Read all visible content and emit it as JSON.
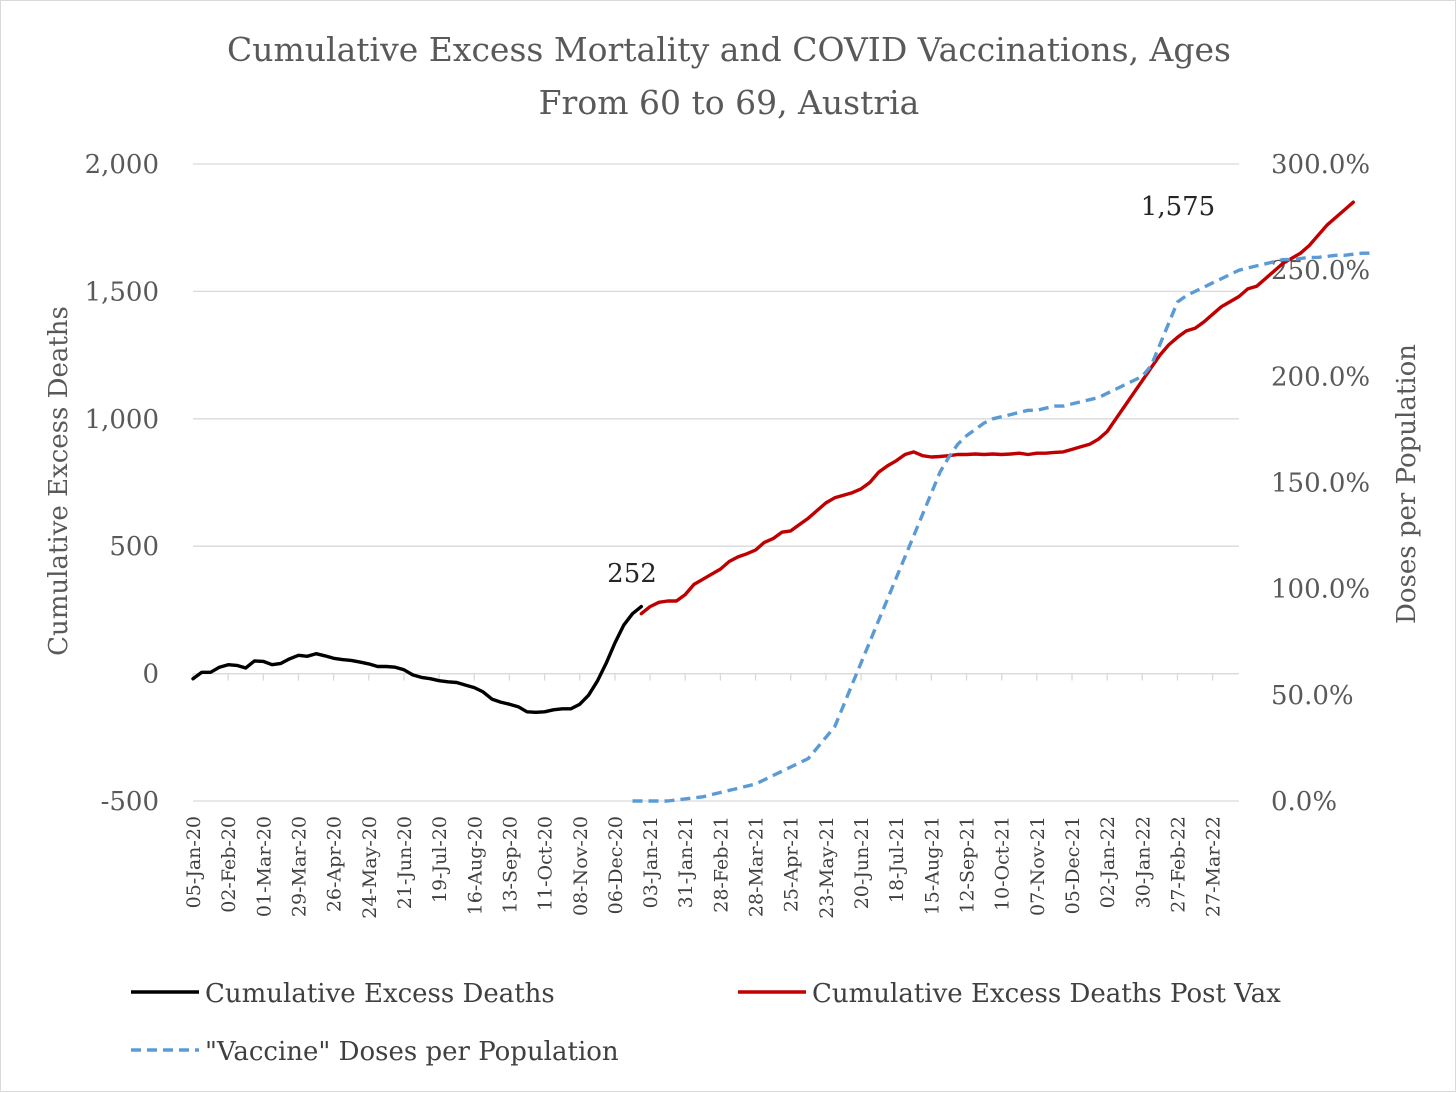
{
  "chart_data": {
    "type": "line",
    "title_line1": "Cumulative Excess Mortality and COVID Vaccinations, Ages",
    "title_line2": "From 60 to 69, Austria",
    "ylabel_left": "Cumulative Excess Deaths",
    "ylabel_right": "Doses per Population",
    "ylim_left": [
      -500,
      2000
    ],
    "ylim_right": [
      0,
      300
    ],
    "left_ticks": [
      "-500",
      "0",
      "500",
      "1,000",
      "1,500",
      "2,000"
    ],
    "right_ticks": [
      "0.0%",
      "50.0%",
      "100.0%",
      "150.0%",
      "200.0%",
      "250.0%",
      "300.0%"
    ],
    "x_ticks": [
      "05-Jan-20",
      "02-Feb-20",
      "01-Mar-20",
      "29-Mar-20",
      "26-Apr-20",
      "24-May-20",
      "21-Jun-20",
      "19-Jul-20",
      "16-Aug-20",
      "13-Sep-20",
      "11-Oct-20",
      "08-Nov-20",
      "06-Dec-20",
      "03-Jan-21",
      "31-Jan-21",
      "28-Feb-21",
      "28-Mar-21",
      "25-Apr-21",
      "23-May-21",
      "20-Jun-21",
      "18-Jul-21",
      "15-Aug-21",
      "12-Sep-21",
      "10-Oct-21",
      "07-Nov-21",
      "05-Dec-21",
      "02-Jan-22",
      "30-Jan-22",
      "27-Feb-22",
      "27-Mar-22"
    ],
    "grid": true,
    "legend_position": "bottom",
    "annotations": [
      {
        "text": "252",
        "x": "06-Dec-20",
        "y": 252
      },
      {
        "text": "1,575",
        "x": "27-Mar-22",
        "y": 1575
      }
    ],
    "series": [
      {
        "name": "Cumulative Excess Deaths",
        "axis": "left",
        "color": "#000000",
        "dash": "solid",
        "week_index_start": 0,
        "values": [
          -20,
          5,
          5,
          25,
          35,
          32,
          22,
          50,
          48,
          35,
          40,
          58,
          72,
          68,
          78,
          70,
          60,
          55,
          52,
          45,
          38,
          28,
          28,
          25,
          15,
          -5,
          -15,
          -20,
          -28,
          -32,
          -35,
          -45,
          -55,
          -72,
          -100,
          -112,
          -120,
          -130,
          -150,
          -152,
          -150,
          -142,
          -138,
          -138,
          -120,
          -85,
          -30,
          40,
          120,
          190,
          235,
          263
        ]
      },
      {
        "name": "Cumulative Excess Deaths Post Vax",
        "axis": "left",
        "color": "#c00000",
        "dash": "solid",
        "week_index_start": 51,
        "values": [
          235,
          263,
          280,
          285,
          285,
          310,
          350,
          370,
          390,
          410,
          440,
          458,
          470,
          485,
          515,
          530,
          555,
          560,
          585,
          610,
          640,
          670,
          690,
          700,
          710,
          725,
          750,
          790,
          815,
          835,
          860,
          870,
          855,
          850,
          852,
          855,
          860,
          860,
          862,
          860,
          862,
          860,
          862,
          865,
          860,
          865,
          865,
          868,
          870,
          880,
          890,
          900,
          920,
          950,
          1000,
          1050,
          1100,
          1150,
          1200,
          1250,
          1290,
          1320,
          1345,
          1355,
          1380,
          1410,
          1440,
          1460,
          1480,
          1510,
          1520,
          1550,
          1580,
          1610,
          1630,
          1650,
          1680,
          1720,
          1760,
          1790,
          1820,
          1850
        ]
      },
      {
        "name": "\"Vaccine\" Doses per Population",
        "axis": "right",
        "color": "#5b9bd5",
        "dash": "dashed",
        "week_index_start": 50,
        "values": [
          0,
          0,
          0,
          0,
          0,
          0.5,
          1,
          1.5,
          2,
          3,
          4,
          5,
          6,
          7,
          8,
          10,
          12,
          14,
          16,
          18,
          20,
          25,
          30,
          35,
          45,
          55,
          65,
          75,
          85,
          95,
          105,
          115,
          125,
          135,
          145,
          155,
          162,
          168,
          172,
          175,
          178,
          180,
          181,
          182,
          183,
          184,
          184,
          185,
          186,
          186,
          187,
          188,
          189,
          190,
          192,
          194,
          196,
          198,
          200,
          205,
          215,
          225,
          235,
          238,
          240,
          242,
          244,
          246,
          248,
          250,
          251,
          252,
          253,
          254,
          255,
          255,
          255.5,
          256,
          256,
          256.5,
          257,
          257,
          257.5,
          258,
          258
        ]
      }
    ]
  }
}
